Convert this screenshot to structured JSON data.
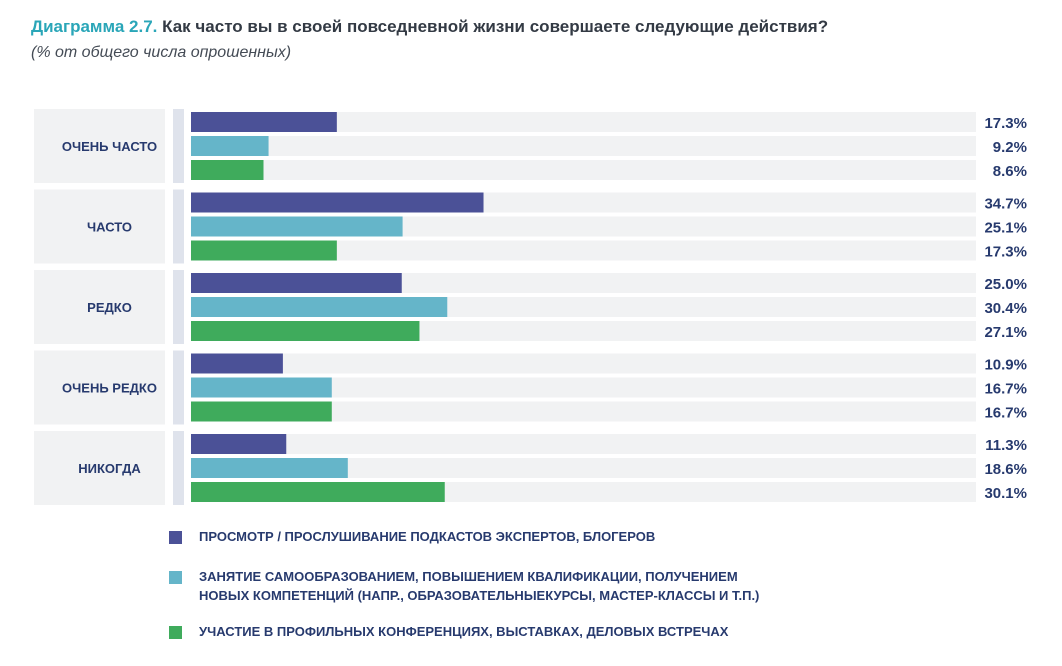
{
  "header": {
    "title_prefix": "Диаграмма 2.7.",
    "title_text": "Как часто вы в своей повседневной жизни совершаете следующие действия?",
    "subtitle": "(% от общего числа опрошенных)"
  },
  "colors": {
    "series1": "#4b5197",
    "series2": "#65b5c9",
    "series3": "#3fab5c",
    "track": "#f1f2f3",
    "label_bg": "#f1f2f3",
    "separator": "#dfe3ec",
    "text": "#273a6e"
  },
  "chart_data": {
    "type": "bar",
    "orientation": "horizontal",
    "categories": [
      "ОЧЕНЬ ЧАСТО",
      "ЧАСТО",
      "РЕДКО",
      "ОЧЕНЬ РЕДКО",
      "НИКОГДА"
    ],
    "series": [
      {
        "name": "ПРОСМОТР / ПРОСЛУШИВАНИЕ ПОДКАСТОВ ЭКСПЕРТОВ, БЛОГЕРОВ",
        "values": [
          17.3,
          34.7,
          25.0,
          10.9,
          11.3
        ],
        "labels": [
          "17.3%",
          "34.7%",
          "25.0%",
          "10.9%",
          "11.3%"
        ]
      },
      {
        "name": "ЗАНЯТИЕ САМООБРАЗОВАНИЕМ, ПОВЫШЕНИЕМ КВАЛИФИКАЦИИ, ПОЛУЧЕНИЕМ НОВЫХ КОМПЕТЕНЦИЙ (НАПР., ОБРАЗОВАТЕЛЬНЫЕКУРСЫ, МАСТЕР-КЛАССЫ И Т.П.)",
        "values": [
          9.2,
          25.1,
          30.4,
          16.7,
          18.6
        ],
        "labels": [
          "9.2%",
          "25.1%",
          "30.4%",
          "16.7%",
          "18.6%"
        ]
      },
      {
        "name": "УЧАСТИЕ В ПРОФИЛЬНЫХ КОНФЕРЕНЦИЯХ, ВЫСТАВКАХ, ДЕЛОВЫХ ВСТРЕЧАХ",
        "values": [
          8.6,
          17.3,
          27.1,
          16.7,
          30.1
        ],
        "labels": [
          "8.6%",
          "17.3%",
          "27.1%",
          "16.7%",
          "30.1%"
        ]
      }
    ],
    "xlim": [
      0,
      100
    ],
    "grid": false,
    "legend_position": "bottom"
  },
  "legend": {
    "items": [
      {
        "line1": "ПРОСМОТР / ПРОСЛУШИВАНИЕ ПОДКАСТОВ ЭКСПЕРТОВ, БЛОГЕРОВ",
        "line2": ""
      },
      {
        "line1": "ЗАНЯТИЕ САМООБРАЗОВАНИЕМ, ПОВЫШЕНИЕМ КВАЛИФИКАЦИИ, ПОЛУЧЕНИЕМ",
        "line2": "НОВЫХ КОМПЕТЕНЦИЙ (НАПР., ОБРАЗОВАТЕЛЬНЫЕКУРСЫ, МАСТЕР-КЛАССЫ И Т.П.)"
      },
      {
        "line1": "УЧАСТИЕ В ПРОФИЛЬНЫХ КОНФЕРЕНЦИЯХ, ВЫСТАВКАХ, ДЕЛОВЫХ ВСТРЕЧАХ",
        "line2": ""
      }
    ]
  }
}
